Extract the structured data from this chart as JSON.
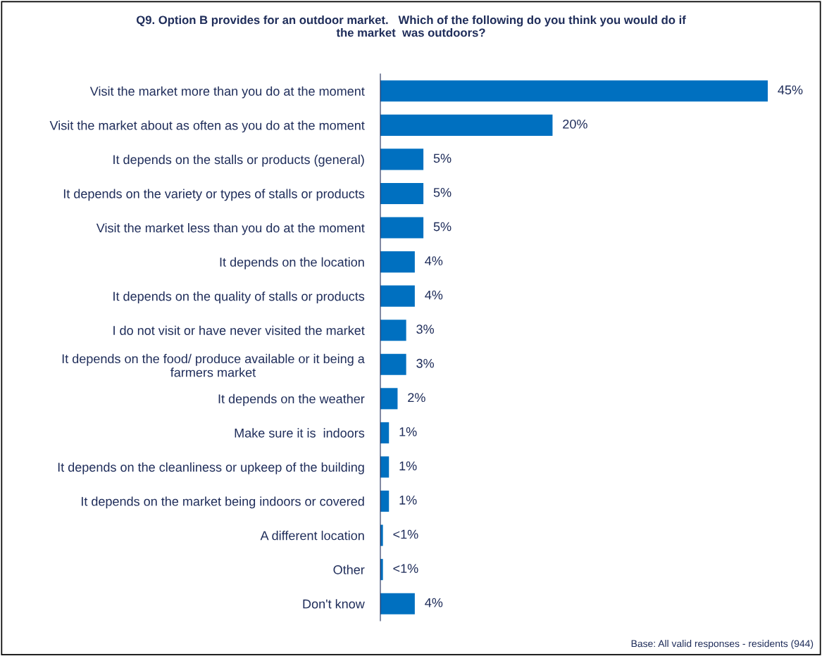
{
  "chart_data": {
    "type": "bar",
    "orientation": "horizontal",
    "title": "Q9. Option B provides for an outdoor market.   Which of the following do you think you would do if\nthe market  was outdoors?",
    "categories": [
      "Visit the market more than you do at the moment",
      "Visit the market about as often as you do at the moment",
      "It depends on the stalls or products (general)",
      "It depends on the variety or types of stalls or products",
      "Visit the market less than you do at the moment",
      "It depends on the location",
      "It depends on the quality of stalls or products",
      "I do not visit or have never visited the market",
      "It depends on the food/ produce available or it being a\nfarmers market",
      "It depends on the weather",
      "Make sure it is  indoors",
      "It depends on the cleanliness or upkeep of the building",
      "It depends on the market being indoors or covered",
      "A different location",
      "Other",
      "Don't know"
    ],
    "values": [
      45,
      20,
      5,
      5,
      5,
      4,
      4,
      3,
      3,
      2,
      1,
      1,
      1,
      0.3,
      0.3,
      4
    ],
    "value_labels": [
      "45%",
      "20%",
      "5%",
      "5%",
      "5%",
      "4%",
      "4%",
      "3%",
      "3%",
      "2%",
      "1%",
      "1%",
      "1%",
      "<1%",
      "<1%",
      "4%"
    ],
    "color": "#0070c0",
    "grid": false,
    "legend": false,
    "annotations": [
      "Base: All valid responses - residents (944)"
    ]
  }
}
